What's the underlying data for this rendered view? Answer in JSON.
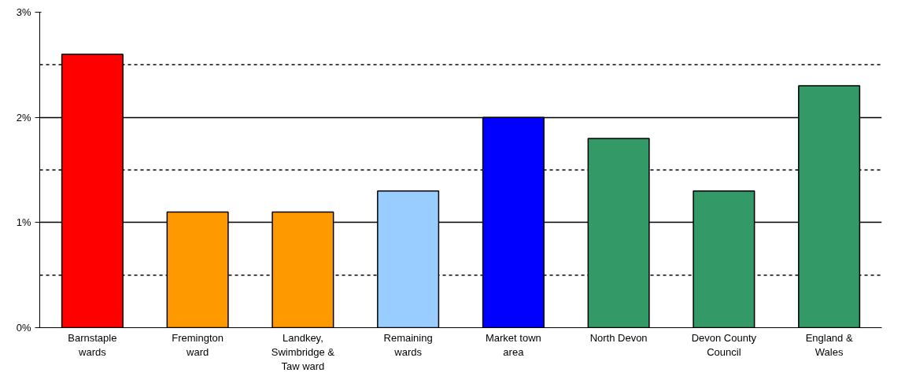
{
  "chart_data": {
    "type": "bar",
    "categories": [
      "Barnstaple wards",
      "Fremington ward",
      "Landkey, Swimbridge & Taw ward",
      "Remaining wards",
      "Market town area",
      "North Devon",
      "Devon County Council",
      "England & Wales"
    ],
    "values": [
      2.6,
      1.1,
      1.1,
      1.3,
      2.0,
      1.8,
      1.3,
      2.3
    ],
    "colors": [
      "#ff0000",
      "#ff9900",
      "#ff9900",
      "#99ccff",
      "#0000ff",
      "#339966",
      "#339966",
      "#339966"
    ],
    "ylim": [
      0,
      3
    ],
    "yticks": [
      {
        "value": 0,
        "label": "0%"
      },
      {
        "value": 1,
        "label": "1%"
      },
      {
        "value": 2,
        "label": "2%"
      },
      {
        "value": 3,
        "label": "3%"
      }
    ],
    "grid": "y",
    "ref_lines": [
      {
        "axis": "y",
        "value": 0.5,
        "line_style": "dotted",
        "color": "#000000"
      },
      {
        "axis": "y",
        "value": 1.5,
        "line_style": "dotted",
        "color": "#000000"
      },
      {
        "axis": "y",
        "value": 2.5,
        "line_style": "dotted",
        "color": "#000000"
      }
    ]
  }
}
